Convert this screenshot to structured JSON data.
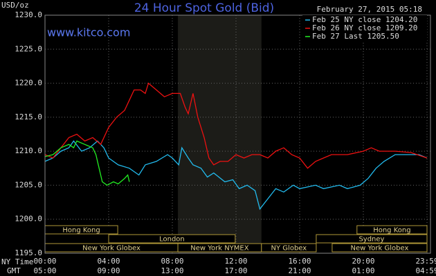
{
  "chart_data": {
    "type": "line",
    "title": "24 Hour Spot Gold (Bid)",
    "timestamp": "February 27, 2015 05:18",
    "watermark": "www.kitco.com",
    "y_label": "USD/oz",
    "x_rows": [
      "NY Time",
      "GMT"
    ],
    "xlim": [
      0,
      24
    ],
    "xticks": [
      {
        "value": 0,
        "label": "00:00"
      },
      {
        "value": 4,
        "label": "04:00"
      },
      {
        "value": 8,
        "label": "08:00"
      },
      {
        "value": 12,
        "label": "12:00"
      },
      {
        "value": 16,
        "label": "16:00"
      },
      {
        "value": 20,
        "label": "20:00"
      },
      {
        "value": 24,
        "label": "23:59"
      }
    ],
    "xticks_gmt": [
      "05:00",
      "09:00",
      "13:00",
      "17:00",
      "21:00",
      "01:00",
      "04:59"
    ],
    "ylim": [
      1195,
      1230
    ],
    "yticks": [
      {
        "value": 1195,
        "label": "1195.0"
      },
      {
        "value": 1200,
        "label": "1200.0"
      },
      {
        "value": 1205,
        "label": "1205.0"
      },
      {
        "value": 1210,
        "label": "1210.0"
      },
      {
        "value": 1215,
        "label": "1215.0"
      },
      {
        "value": 1220,
        "label": "1220.0"
      },
      {
        "value": 1225,
        "label": "1225.0"
      },
      {
        "value": 1230,
        "label": "1230.0"
      }
    ],
    "grid": true,
    "series": [
      {
        "name": "Feb 25 NY close 1204.20",
        "color": "#22bbee",
        "x": [
          0,
          0.5,
          1,
          1.5,
          1.8,
          2.3,
          2.8,
          3.3,
          3.7,
          4,
          4.6,
          5.3,
          5.9,
          6.3,
          7,
          7.7,
          8,
          8.4,
          8.6,
          9,
          9.3,
          9.8,
          10.2,
          10.6,
          11.3,
          11.8,
          12.2,
          12.7,
          13.2,
          13.5,
          14,
          14.5,
          15,
          15.6,
          16,
          17,
          17.5,
          18.5,
          19,
          19.8,
          20.3,
          20.8,
          21.3,
          22,
          23,
          23.5,
          24
        ],
        "values": [
          1208.5,
          1209,
          1210,
          1210.5,
          1211.5,
          1210,
          1210.5,
          1211.5,
          1210.5,
          1209,
          1208,
          1207.5,
          1206.5,
          1208,
          1208.5,
          1209.5,
          1209,
          1208,
          1210.5,
          1209,
          1208,
          1207.5,
          1206.2,
          1206.8,
          1205.5,
          1205.8,
          1204.5,
          1205,
          1204.2,
          1201.5,
          1203,
          1204.5,
          1204,
          1205,
          1204.5,
          1205,
          1204.5,
          1205,
          1204.5,
          1205,
          1206,
          1207.5,
          1208.5,
          1209.5,
          1209.5,
          1209.5,
          1209
        ]
      },
      {
        "name": "Feb 26 NY close 1209.20",
        "color": "#ee1111",
        "x": [
          0,
          0.5,
          1,
          1.5,
          2,
          2.5,
          3,
          3.5,
          4,
          4.5,
          5,
          5.3,
          5.6,
          6,
          6.3,
          6.5,
          7,
          7.5,
          8,
          8.5,
          8.8,
          9,
          9.3,
          9.6,
          10,
          10.3,
          10.6,
          11,
          11.5,
          12,
          12.5,
          13,
          13.5,
          14,
          14.5,
          15,
          15.5,
          16,
          16.5,
          17,
          17.5,
          18,
          19,
          20,
          20.5,
          21,
          22,
          23,
          24
        ],
        "values": [
          1209.5,
          1209,
          1210.5,
          1212,
          1212.5,
          1211.5,
          1212,
          1211,
          1213.5,
          1215,
          1216,
          1217.5,
          1219,
          1219,
          1218.5,
          1220,
          1219,
          1218,
          1218.5,
          1218.5,
          1216.5,
          1215.5,
          1218.5,
          1215,
          1212,
          1209,
          1208,
          1208.5,
          1208.5,
          1209.5,
          1209,
          1209.5,
          1209.5,
          1209,
          1210,
          1210.5,
          1209.5,
          1209,
          1207.5,
          1208.5,
          1209,
          1209.5,
          1209.5,
          1210,
          1210.5,
          1210,
          1210,
          1209.8,
          1209
        ]
      },
      {
        "name": "Feb 27 Last 1205.50",
        "color": "#22ee22",
        "x": [
          0,
          0.5,
          1,
          1.5,
          1.8,
          2,
          2.5,
          3,
          3.2,
          3.4,
          3.6,
          3.9,
          4.3,
          4.6,
          5,
          5.2,
          5.3
        ],
        "values": [
          1209.2,
          1209.5,
          1210.5,
          1211,
          1210.5,
          1211.5,
          1211,
          1210.5,
          1209.5,
          1207.5,
          1205.5,
          1205,
          1205.5,
          1205.2,
          1206,
          1206.5,
          1205.5
        ]
      }
    ],
    "sessions": [
      {
        "label": "Hong Kong",
        "start": 0,
        "end": 4.57,
        "row": 0
      },
      {
        "label": "Hong Kong",
        "start": 19.6,
        "end": 24,
        "row": 0
      },
      {
        "label": "London",
        "start": 4,
        "end": 11.95,
        "row": 1
      },
      {
        "label": "Sydney",
        "start": 17.04,
        "end": 24,
        "row": 1
      },
      {
        "label": "New York Globex",
        "start": 0,
        "end": 8.35,
        "row": 2
      },
      {
        "label": "New York NYMEX",
        "start": 8.35,
        "end": 13.6,
        "row": 2
      },
      {
        "label": "NY Globex",
        "start": 13.6,
        "end": 17.04,
        "row": 2
      },
      {
        "label": "New York Globex",
        "start": 18.04,
        "end": 24,
        "row": 2
      }
    ]
  }
}
